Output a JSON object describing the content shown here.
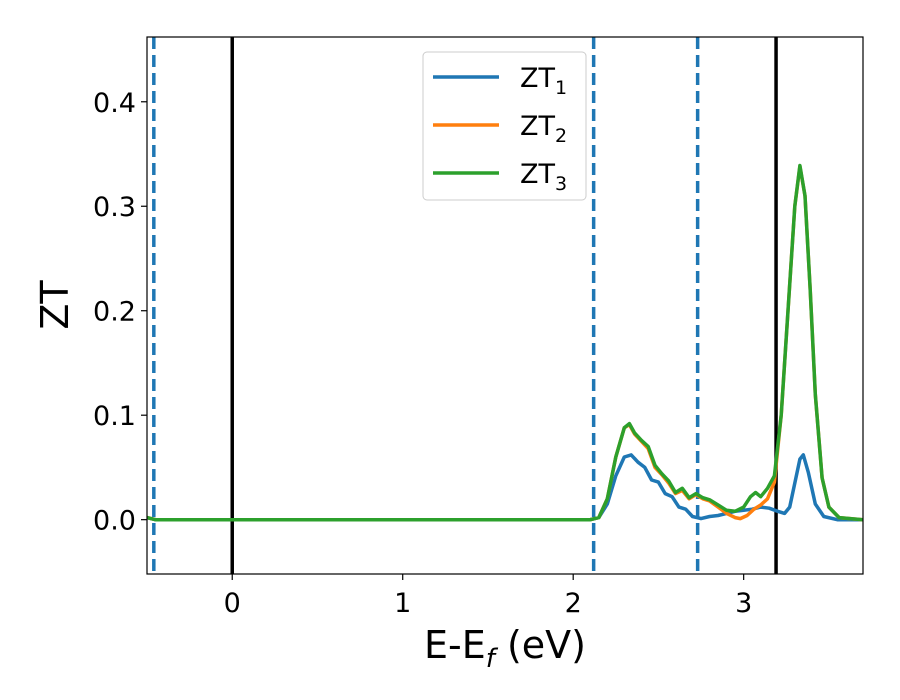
{
  "chart_data": {
    "type": "line",
    "title": "",
    "xlabel": "E-E",
    "xlabel_sub": "f",
    "xlabel_unit": " (eV)",
    "ylabel": "ZT",
    "xlim": [
      -0.5,
      3.7
    ],
    "ylim": [
      -0.052,
      0.462
    ],
    "xticks": [
      0,
      1,
      2,
      3
    ],
    "xtick_labels": [
      "0",
      "1",
      "2",
      "3"
    ],
    "yticks": [
      0.0,
      0.1,
      0.2,
      0.3,
      0.4
    ],
    "ytick_labels": [
      "0.0",
      "0.1",
      "0.2",
      "0.3",
      "0.4"
    ],
    "grid": false,
    "legend_position": "top-center",
    "vlines": [
      {
        "x": -0.46,
        "style": "dashed",
        "color": "#1f77b4"
      },
      {
        "x": 0.0,
        "style": "solid",
        "color": "#000000"
      },
      {
        "x": 2.12,
        "style": "dashed",
        "color": "#1f77b4"
      },
      {
        "x": 2.73,
        "style": "dashed",
        "color": "#1f77b4"
      },
      {
        "x": 3.19,
        "style": "solid",
        "color": "#000000"
      }
    ],
    "series": [
      {
        "name": "ZT",
        "name_sub": "1",
        "color": "#1f77b4",
        "points": [
          [
            -0.5,
            0.002
          ],
          [
            -0.45,
            0.0
          ],
          [
            2.1,
            0.0
          ],
          [
            2.15,
            0.002
          ],
          [
            2.2,
            0.015
          ],
          [
            2.25,
            0.042
          ],
          [
            2.3,
            0.06
          ],
          [
            2.34,
            0.062
          ],
          [
            2.38,
            0.055
          ],
          [
            2.42,
            0.05
          ],
          [
            2.46,
            0.038
          ],
          [
            2.5,
            0.036
          ],
          [
            2.54,
            0.025
          ],
          [
            2.58,
            0.022
          ],
          [
            2.62,
            0.012
          ],
          [
            2.66,
            0.01
          ],
          [
            2.7,
            0.003
          ],
          [
            2.75,
            0.001
          ],
          [
            2.8,
            0.003
          ],
          [
            2.85,
            0.004
          ],
          [
            2.9,
            0.006
          ],
          [
            2.95,
            0.008
          ],
          [
            3.0,
            0.009
          ],
          [
            3.05,
            0.01
          ],
          [
            3.1,
            0.012
          ],
          [
            3.15,
            0.011
          ],
          [
            3.2,
            0.008
          ],
          [
            3.24,
            0.006
          ],
          [
            3.27,
            0.012
          ],
          [
            3.3,
            0.035
          ],
          [
            3.33,
            0.058
          ],
          [
            3.35,
            0.062
          ],
          [
            3.38,
            0.045
          ],
          [
            3.42,
            0.015
          ],
          [
            3.47,
            0.003
          ],
          [
            3.55,
            0.0
          ],
          [
            3.7,
            0.0
          ]
        ]
      },
      {
        "name": "ZT",
        "name_sub": "2",
        "color": "#ff7f0e",
        "points": [
          [
            -0.5,
            0.002
          ],
          [
            -0.45,
            0.0
          ],
          [
            2.1,
            0.0
          ],
          [
            2.15,
            0.002
          ],
          [
            2.2,
            0.02
          ],
          [
            2.25,
            0.06
          ],
          [
            2.3,
            0.088
          ],
          [
            2.33,
            0.091
          ],
          [
            2.36,
            0.082
          ],
          [
            2.4,
            0.075
          ],
          [
            2.44,
            0.068
          ],
          [
            2.48,
            0.05
          ],
          [
            2.52,
            0.043
          ],
          [
            2.56,
            0.035
          ],
          [
            2.6,
            0.025
          ],
          [
            2.64,
            0.028
          ],
          [
            2.68,
            0.02
          ],
          [
            2.72,
            0.024
          ],
          [
            2.76,
            0.02
          ],
          [
            2.8,
            0.018
          ],
          [
            2.85,
            0.012
          ],
          [
            2.9,
            0.006
          ],
          [
            2.95,
            0.002
          ],
          [
            2.98,
            0.001
          ],
          [
            3.02,
            0.004
          ],
          [
            3.06,
            0.01
          ],
          [
            3.1,
            0.014
          ],
          [
            3.14,
            0.02
          ],
          [
            3.18,
            0.036
          ],
          [
            3.22,
            0.1
          ],
          [
            3.26,
            0.2
          ],
          [
            3.3,
            0.3
          ],
          [
            3.33,
            0.338
          ],
          [
            3.36,
            0.31
          ],
          [
            3.39,
            0.22
          ],
          [
            3.42,
            0.12
          ],
          [
            3.46,
            0.04
          ],
          [
            3.5,
            0.012
          ],
          [
            3.56,
            0.002
          ],
          [
            3.7,
            0.0
          ]
        ]
      },
      {
        "name": "ZT",
        "name_sub": "3",
        "color": "#2ca02c",
        "points": [
          [
            -0.5,
            0.002
          ],
          [
            -0.45,
            0.0
          ],
          [
            2.1,
            0.0
          ],
          [
            2.15,
            0.002
          ],
          [
            2.2,
            0.02
          ],
          [
            2.25,
            0.06
          ],
          [
            2.3,
            0.088
          ],
          [
            2.33,
            0.092
          ],
          [
            2.36,
            0.083
          ],
          [
            2.4,
            0.076
          ],
          [
            2.44,
            0.07
          ],
          [
            2.48,
            0.052
          ],
          [
            2.52,
            0.044
          ],
          [
            2.56,
            0.037
          ],
          [
            2.6,
            0.026
          ],
          [
            2.64,
            0.03
          ],
          [
            2.68,
            0.021
          ],
          [
            2.72,
            0.025
          ],
          [
            2.76,
            0.021
          ],
          [
            2.8,
            0.019
          ],
          [
            2.85,
            0.014
          ],
          [
            2.9,
            0.009
          ],
          [
            2.95,
            0.008
          ],
          [
            3.0,
            0.012
          ],
          [
            3.04,
            0.022
          ],
          [
            3.07,
            0.026
          ],
          [
            3.1,
            0.022
          ],
          [
            3.14,
            0.03
          ],
          [
            3.18,
            0.042
          ],
          [
            3.22,
            0.1
          ],
          [
            3.26,
            0.2
          ],
          [
            3.3,
            0.3
          ],
          [
            3.33,
            0.339
          ],
          [
            3.36,
            0.31
          ],
          [
            3.39,
            0.22
          ],
          [
            3.42,
            0.12
          ],
          [
            3.46,
            0.04
          ],
          [
            3.5,
            0.012
          ],
          [
            3.56,
            0.002
          ],
          [
            3.7,
            0.0
          ]
        ]
      }
    ]
  }
}
